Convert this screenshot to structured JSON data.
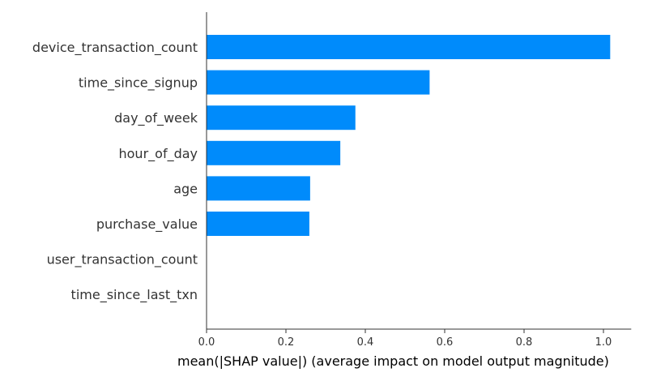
{
  "chart_data": {
    "type": "bar",
    "orientation": "horizontal",
    "categories": [
      "device_transaction_count",
      "time_since_signup",
      "day_of_week",
      "hour_of_day",
      "age",
      "purchase_value",
      "user_transaction_count",
      "time_since_last_txn"
    ],
    "values": [
      1.017,
      0.562,
      0.375,
      0.337,
      0.261,
      0.259,
      0.0,
      0.0
    ],
    "xlabel": "mean(|SHAP value|) (average impact on model output magnitude)",
    "ylabel": "",
    "xlim": [
      0,
      1.07
    ],
    "xticks": [
      0.0,
      0.2,
      0.4,
      0.6,
      0.8,
      1.0
    ],
    "xtick_labels": [
      "0.0",
      "0.2",
      "0.4",
      "0.6",
      "0.8",
      "1.0"
    ],
    "grid": false,
    "bar_color": "#008bfb"
  }
}
